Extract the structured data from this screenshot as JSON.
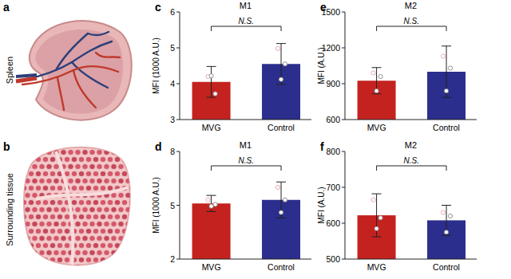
{
  "illustrations": [
    {
      "label": "a",
      "caption": "Spleen"
    },
    {
      "label": "b",
      "caption": "Surrounding tissue"
    }
  ],
  "chart_data": [
    {
      "type": "bar",
      "title": "M1",
      "annotations": [
        "c",
        "N.S."
      ],
      "y_label": "MFI (1000 A.U.)",
      "categories": [
        "MVG",
        "Control"
      ],
      "values": [
        4.05,
        4.55
      ],
      "errors": [
        0.43,
        0.57
      ],
      "points": [
        [
          4.2,
          3.72,
          4.22
        ],
        [
          4.98,
          4.55,
          4.12
        ]
      ],
      "colors": [
        "#c4221f",
        "#2b2e8c"
      ],
      "ylim": [
        3,
        6
      ],
      "yticks": [
        3,
        4,
        5,
        6
      ]
    },
    {
      "type": "bar",
      "title": "M1",
      "annotations": [
        "d",
        "N.S."
      ],
      "y_label": "MFI (1000 A.U.)",
      "categories": [
        "MVG",
        "Control"
      ],
      "values": [
        5.1,
        5.3
      ],
      "errors": [
        0.45,
        1.0
      ],
      "points": [
        [
          5.3,
          5.05,
          4.95
        ],
        [
          6.0,
          5.3,
          4.6
        ]
      ],
      "colors": [
        "#c4221f",
        "#2b2e8c"
      ],
      "ylim": [
        2,
        8
      ],
      "yticks": [
        2,
        5,
        8
      ]
    },
    {
      "type": "bar",
      "title": "M2",
      "annotations": [
        "e",
        "N.S."
      ],
      "y_label": "MFI (A.U.)",
      "categories": [
        "MVG",
        "Control"
      ],
      "values": [
        925,
        1000
      ],
      "errors": [
        110,
        215
      ],
      "points": [
        [
          990,
          960,
          840
        ],
        [
          1130,
          1030,
          840
        ]
      ],
      "colors": [
        "#c4221f",
        "#2b2e8c"
      ],
      "ylim": [
        600,
        1500
      ],
      "yticks": [
        600,
        900,
        1200,
        1500
      ]
    },
    {
      "type": "bar",
      "title": "M2",
      "annotations": [
        "f",
        "N.S."
      ],
      "y_label": "MFI (A.U.)",
      "categories": [
        "MVG",
        "Control"
      ],
      "values": [
        622,
        608
      ],
      "errors": [
        60,
        42
      ],
      "points": [
        [
          665,
          615,
          585
        ],
        [
          630,
          620,
          575
        ]
      ],
      "colors": [
        "#c4221f",
        "#2b2e8c"
      ],
      "ylim": [
        500,
        800
      ],
      "yticks": [
        500,
        600,
        700,
        800
      ]
    }
  ]
}
